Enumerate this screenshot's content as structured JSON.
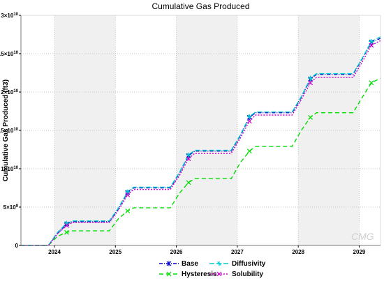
{
  "chart_data": {
    "type": "line",
    "title": "Cumulative Gas Produced",
    "ylabel": "Cumulative Gas Produced (ft3)",
    "xlabel": "",
    "xlim": [
      2023.45,
      2029.35
    ],
    "ylim": [
      0,
      30000000000.0
    ],
    "x_ticks": [
      "2024",
      "2025",
      "2026",
      "2027",
      "2028",
      "2029"
    ],
    "y_ticks": [
      {
        "value": 0,
        "mant": "0",
        "exp": ""
      },
      {
        "value": 5000000000.0,
        "mant": "5×10",
        "exp": "9"
      },
      {
        "value": 10000000000.0,
        "mant": "1×10",
        "exp": "10"
      },
      {
        "value": 15000000000.0,
        "mant": "1.5×10",
        "exp": "10"
      },
      {
        "value": 20000000000.0,
        "mant": "2×10",
        "exp": "10"
      },
      {
        "value": 25000000000.0,
        "mant": "2.5×10",
        "exp": "10"
      },
      {
        "value": 30000000000.0,
        "mant": "3×10",
        "exp": "10"
      }
    ],
    "shaded_bands": [
      [
        2024,
        2025
      ],
      [
        2026,
        2027
      ],
      [
        2028,
        2029
      ]
    ],
    "grid": true,
    "legend_position": "bottom",
    "watermark": "CMG",
    "series": [
      {
        "name": "Base",
        "color": "#0000cc",
        "dash": "5,2,1,2",
        "x": [
          2023.45,
          2023.9,
          2024.05,
          2024.2,
          2024.3,
          2024.9,
          2025.05,
          2025.2,
          2025.3,
          2025.9,
          2026.05,
          2026.2,
          2026.3,
          2026.9,
          2027.05,
          2027.2,
          2027.3,
          2027.9,
          2028.05,
          2028.2,
          2028.3,
          2028.9,
          2029.05,
          2029.2,
          2029.35
        ],
        "y": [
          0,
          0,
          1600000000.0,
          2800000000.0,
          3100000000.0,
          3100000000.0,
          4800000000.0,
          6900000000.0,
          7500000000.0,
          7500000000.0,
          9400000000.0,
          11700000000.0,
          12300000000.0,
          12300000000.0,
          14300000000.0,
          16700000000.0,
          17300000000.0,
          17300000000.0,
          19300000000.0,
          21700000000.0,
          22300000000.0,
          22300000000.0,
          24300000000.0,
          26500000000.0,
          27000000000.0
        ]
      },
      {
        "name": "Hysteresis",
        "color": "#00dd00",
        "dash": "6,4",
        "x": [
          2023.45,
          2023.9,
          2024.05,
          2024.2,
          2024.3,
          2024.9,
          2025.05,
          2025.2,
          2025.3,
          2025.9,
          2026.05,
          2026.2,
          2026.3,
          2026.9,
          2027.05,
          2027.2,
          2027.3,
          2027.9,
          2028.05,
          2028.2,
          2028.3,
          2028.9,
          2029.05,
          2029.2,
          2029.35
        ],
        "y": [
          0,
          0,
          1200000000.0,
          1700000000.0,
          1900000000.0,
          1900000000.0,
          3500000000.0,
          4500000000.0,
          4900000000.0,
          4900000000.0,
          6800000000.0,
          8200000000.0,
          8700000000.0,
          8700000000.0,
          10800000000.0,
          12300000000.0,
          12900000000.0,
          12900000000.0,
          15000000000.0,
          16700000000.0,
          17300000000.0,
          17300000000.0,
          19300000000.0,
          21200000000.0,
          21800000000.0
        ]
      },
      {
        "name": "Diffusivity",
        "color": "#00cccc",
        "dash": "7,3",
        "x": [
          2023.45,
          2023.9,
          2024.05,
          2024.2,
          2024.3,
          2024.9,
          2025.05,
          2025.2,
          2025.3,
          2025.9,
          2026.05,
          2026.2,
          2026.3,
          2026.9,
          2027.05,
          2027.2,
          2027.3,
          2027.9,
          2028.05,
          2028.2,
          2028.3,
          2028.9,
          2029.05,
          2029.2,
          2029.35
        ],
        "y": [
          0,
          0,
          1700000000.0,
          2900000000.0,
          3200000000.0,
          3200000000.0,
          4900000000.0,
          7000000000.0,
          7600000000.0,
          7600000000.0,
          9500000000.0,
          11800000000.0,
          12400000000.0,
          12400000000.0,
          14400000000.0,
          16800000000.0,
          17400000000.0,
          17400000000.0,
          19400000000.0,
          21800000000.0,
          22400000000.0,
          22400000000.0,
          24400000000.0,
          26600000000.0,
          27200000000.0
        ]
      },
      {
        "name": "Solubility",
        "color": "#cc00cc",
        "dash": "2,2",
        "x": [
          2023.45,
          2023.9,
          2024.05,
          2024.2,
          2024.3,
          2024.9,
          2025.05,
          2025.2,
          2025.3,
          2025.9,
          2026.05,
          2026.2,
          2026.3,
          2026.9,
          2027.05,
          2027.2,
          2027.3,
          2027.9,
          2028.05,
          2028.2,
          2028.3,
          2028.9,
          2029.05,
          2029.2,
          2029.35
        ],
        "y": [
          0,
          0,
          1500000000.0,
          2600000000.0,
          3000000000.0,
          3000000000.0,
          4600000000.0,
          6600000000.0,
          7300000000.0,
          7300000000.0,
          9100000000.0,
          11300000000.0,
          12000000000.0,
          12000000000.0,
          14000000000.0,
          16200000000.0,
          17000000000.0,
          17000000000.0,
          19000000000.0,
          21200000000.0,
          21900000000.0,
          21900000000.0,
          23900000000.0,
          26100000000.0,
          26700000000.0
        ]
      }
    ]
  }
}
